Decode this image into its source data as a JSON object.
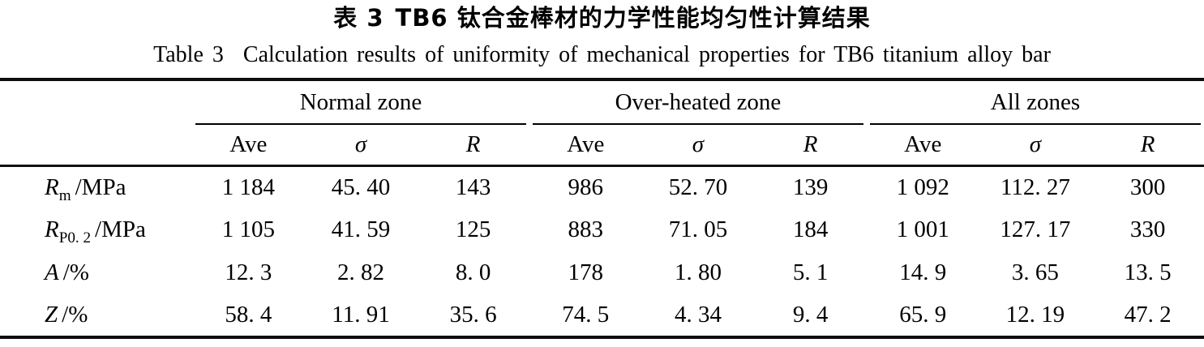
{
  "titles": {
    "cn_prefix": "表 3",
    "cn_main": "TB6 钛合金棒材的力学性能均匀性计算结果",
    "en_prefix": "Table 3",
    "en_main": "Calculation results of uniformity of mechanical properties for TB6 titanium alloy bar"
  },
  "table": {
    "col_groups": [
      {
        "label": "Normal zone"
      },
      {
        "label": "Over-heated zone"
      },
      {
        "label": "All zones"
      }
    ],
    "sub_headers": {
      "ave": "Ave",
      "sigma": "σ",
      "range": "R"
    },
    "rows": [
      {
        "label": {
          "symbol": "R",
          "subscript": "m",
          "unit": "/MPa"
        },
        "values": [
          "1 184",
          "45. 40",
          "143",
          "986",
          "52. 70",
          "139",
          "1 092",
          "112. 27",
          "300"
        ]
      },
      {
        "label": {
          "symbol": "R",
          "subscript": "P0. 2",
          "unit": "/MPa"
        },
        "values": [
          "1 105",
          "41. 59",
          "125",
          "883",
          "71. 05",
          "184",
          "1 001",
          "127. 17",
          "330"
        ]
      },
      {
        "label": {
          "symbol": "A",
          "subscript": "",
          "unit": "/%"
        },
        "values": [
          "12. 3",
          "2. 82",
          "8. 0",
          "178",
          "1. 80",
          "5. 1",
          "14. 9",
          "3. 65",
          "13. 5"
        ]
      },
      {
        "label": {
          "symbol": "Z",
          "subscript": "",
          "unit": "/%"
        },
        "values": [
          "58. 4",
          "11. 91",
          "35. 6",
          "74. 5",
          "4. 34",
          "9. 4",
          "65. 9",
          "12. 19",
          "47. 2"
        ]
      }
    ]
  },
  "chart_data": {
    "type": "table",
    "title": "Table 3 Calculation results of uniformity of mechanical properties for TB6 titanium alloy bar",
    "column_groups": [
      "Normal zone",
      "Over-heated zone",
      "All zones"
    ],
    "columns_per_group": [
      "Ave",
      "σ",
      "R"
    ],
    "row_labels": [
      "Rm /MPa",
      "RP0.2 /MPa",
      "A /%",
      "Z /%"
    ],
    "rows": [
      [
        "1 184",
        "45. 40",
        "143",
        "986",
        "52. 70",
        "139",
        "1 092",
        "112. 27",
        "300"
      ],
      [
        "1 105",
        "41. 59",
        "125",
        "883",
        "71. 05",
        "184",
        "1 001",
        "127. 17",
        "330"
      ],
      [
        "12. 3",
        "2. 82",
        "8. 0",
        "178",
        "1. 80",
        "5. 1",
        "14. 9",
        "3. 65",
        "13. 5"
      ],
      [
        "58. 4",
        "11. 91",
        "35. 6",
        "74. 5",
        "4. 34",
        "9. 4",
        "65. 9",
        "12. 19",
        "47. 2"
      ]
    ]
  }
}
